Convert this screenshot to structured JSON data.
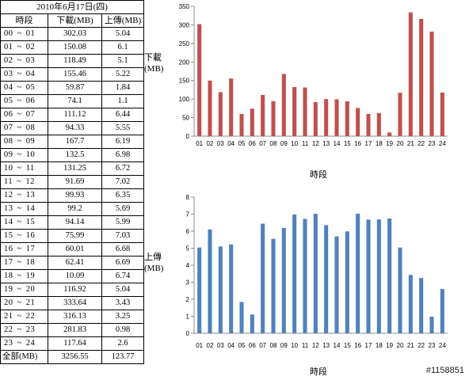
{
  "table": {
    "date": "2010年6月17日(四)",
    "header": {
      "period": "時段",
      "download": "下載(MB)",
      "upload": "上傳(MB)"
    },
    "rows": [
      {
        "start": "00",
        "sep": "~",
        "end": "01",
        "download": "302.03",
        "upload": "5.04"
      },
      {
        "start": "01",
        "sep": "~",
        "end": "02",
        "download": "150.08",
        "upload": "6.1"
      },
      {
        "start": "02",
        "sep": "~",
        "end": "03",
        "download": "118.49",
        "upload": "5.1"
      },
      {
        "start": "03",
        "sep": "~",
        "end": "04",
        "download": "155.46",
        "upload": "5.22"
      },
      {
        "start": "04",
        "sep": "~",
        "end": "05",
        "download": "59.87",
        "upload": "1.84"
      },
      {
        "start": "05",
        "sep": "~",
        "end": "06",
        "download": "74.1",
        "upload": "1.1"
      },
      {
        "start": "06",
        "sep": "~",
        "end": "07",
        "download": "111.12",
        "upload": "6.44"
      },
      {
        "start": "07",
        "sep": "~",
        "end": "08",
        "download": "94.33",
        "upload": "5.55"
      },
      {
        "start": "08",
        "sep": "~",
        "end": "09",
        "download": "167.7",
        "upload": "6.19"
      },
      {
        "start": "09",
        "sep": "~",
        "end": "10",
        "download": "132.5",
        "upload": "6.98"
      },
      {
        "start": "10",
        "sep": "~",
        "end": "11",
        "download": "131.25",
        "upload": "6.72"
      },
      {
        "start": "11",
        "sep": "~",
        "end": "12",
        "download": "91.69",
        "upload": "7.02"
      },
      {
        "start": "12",
        "sep": "~",
        "end": "13",
        "download": "99.93",
        "upload": "6.35"
      },
      {
        "start": "13",
        "sep": "~",
        "end": "14",
        "download": "99.2",
        "upload": "5.69"
      },
      {
        "start": "14",
        "sep": "~",
        "end": "15",
        "download": "94.14",
        "upload": "5.99"
      },
      {
        "start": "15",
        "sep": "~",
        "end": "16",
        "download": "75.99",
        "upload": "7.03"
      },
      {
        "start": "16",
        "sep": "~",
        "end": "17",
        "download": "60.01",
        "upload": "6.68"
      },
      {
        "start": "17",
        "sep": "~",
        "end": "18",
        "download": "62.41",
        "upload": "6.69"
      },
      {
        "start": "18",
        "sep": "~",
        "end": "19",
        "download": "10.09",
        "upload": "6.74"
      },
      {
        "start": "19",
        "sep": "~",
        "end": "20",
        "download": "116.92",
        "upload": "5.04"
      },
      {
        "start": "20",
        "sep": "~",
        "end": "21",
        "download": "333.64",
        "upload": "3.43"
      },
      {
        "start": "21",
        "sep": "~",
        "end": "22",
        "download": "316.13",
        "upload": "3.25"
      },
      {
        "start": "22",
        "sep": "~",
        "end": "23",
        "download": "281.83",
        "upload": "0.98"
      },
      {
        "start": "23",
        "sep": "~",
        "end": "24",
        "download": "117.64",
        "upload": "2.6"
      }
    ],
    "total": {
      "label": "全部(MB)",
      "download": "3256.55",
      "upload": "123.77"
    }
  },
  "side_labels": {
    "download": [
      "下載",
      "(MB)"
    ],
    "upload": [
      "上傳",
      "(MB)"
    ]
  },
  "watermark": "#1158851",
  "chart_data": [
    {
      "type": "bar",
      "color": "#c0504d",
      "categories": [
        "01",
        "02",
        "03",
        "04",
        "05",
        "06",
        "07",
        "08",
        "09",
        "10",
        "11",
        "12",
        "13",
        "14",
        "15",
        "16",
        "17",
        "18",
        "19",
        "20",
        "21",
        "22",
        "23",
        "24"
      ],
      "values": [
        302.03,
        150.08,
        118.49,
        155.46,
        59.87,
        74.1,
        111.12,
        94.33,
        167.7,
        132.5,
        131.25,
        91.69,
        99.93,
        99.2,
        94.14,
        75.99,
        60.01,
        62.41,
        10.09,
        116.92,
        333.64,
        316.13,
        281.83,
        117.64
      ],
      "xlabel": "時段",
      "ylabel": "",
      "ylim": [
        0,
        350
      ],
      "yticks": [
        0,
        50,
        100,
        150,
        200,
        250,
        300,
        350
      ],
      "grid": false,
      "legend": "none"
    },
    {
      "type": "bar",
      "color": "#4f81bd",
      "categories": [
        "01",
        "02",
        "03",
        "04",
        "05",
        "06",
        "07",
        "08",
        "09",
        "10",
        "11",
        "12",
        "13",
        "14",
        "15",
        "16",
        "17",
        "18",
        "19",
        "20",
        "21",
        "22",
        "23",
        "24"
      ],
      "values": [
        5.04,
        6.1,
        5.1,
        5.22,
        1.84,
        1.1,
        6.44,
        5.55,
        6.19,
        6.98,
        6.72,
        7.02,
        6.35,
        5.69,
        5.99,
        7.03,
        6.68,
        6.69,
        6.74,
        5.04,
        3.43,
        3.25,
        0.98,
        2.6
      ],
      "xlabel": "時段",
      "ylabel": "",
      "ylim": [
        0,
        8
      ],
      "yticks": [
        0,
        1,
        2,
        3,
        4,
        5,
        6,
        7,
        8
      ],
      "grid": false,
      "legend": "none"
    }
  ]
}
